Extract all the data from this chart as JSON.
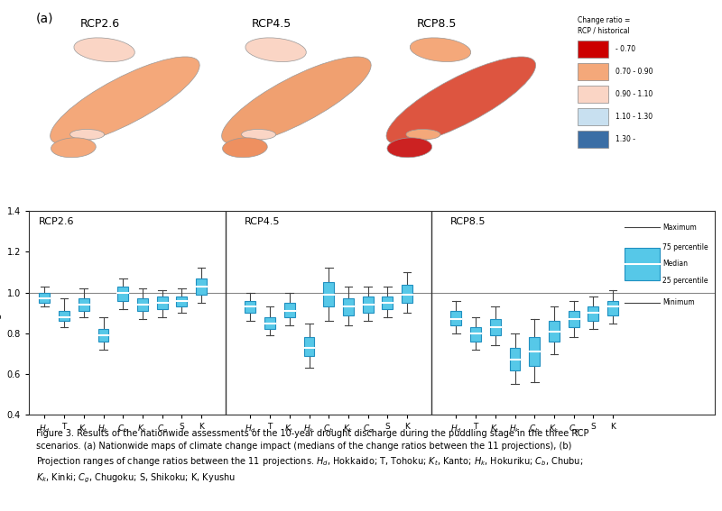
{
  "scenarios": [
    "RCP2.6",
    "RCP4.5",
    "RCP8.5"
  ],
  "region_labels": [
    "$H_d$",
    "T",
    "$K_t$",
    "$H_k$",
    "$C_b$",
    "$K_k$",
    "$C_g$",
    "S",
    "K"
  ],
  "ylim": [
    0.4,
    1.4
  ],
  "yticks": [
    0.4,
    0.6,
    0.8,
    1.0,
    1.2,
    1.4
  ],
  "ylabel": "Change ratio",
  "box_color": "#56C8E8",
  "box_edge_color": "#2090C0",
  "median_color": "#ffffff",
  "whisker_color": "#444444",
  "box_data": {
    "RCP2.6": [
      {
        "min": 0.93,
        "q1": 0.95,
        "median": 0.97,
        "q3": 1.0,
        "max": 1.03
      },
      {
        "min": 0.83,
        "q1": 0.86,
        "median": 0.88,
        "q3": 0.91,
        "max": 0.97
      },
      {
        "min": 0.88,
        "q1": 0.91,
        "median": 0.94,
        "q3": 0.97,
        "max": 1.02
      },
      {
        "min": 0.72,
        "q1": 0.76,
        "median": 0.79,
        "q3": 0.82,
        "max": 0.88
      },
      {
        "min": 0.92,
        "q1": 0.96,
        "median": 1.0,
        "q3": 1.03,
        "max": 1.07
      },
      {
        "min": 0.87,
        "q1": 0.91,
        "median": 0.94,
        "q3": 0.97,
        "max": 1.02
      },
      {
        "min": 0.88,
        "q1": 0.92,
        "median": 0.95,
        "q3": 0.98,
        "max": 1.01
      },
      {
        "min": 0.9,
        "q1": 0.93,
        "median": 0.96,
        "q3": 0.98,
        "max": 1.02
      },
      {
        "min": 0.95,
        "q1": 0.99,
        "median": 1.03,
        "q3": 1.07,
        "max": 1.12
      }
    ],
    "RCP4.5": [
      {
        "min": 0.86,
        "q1": 0.9,
        "median": 0.93,
        "q3": 0.96,
        "max": 1.0
      },
      {
        "min": 0.79,
        "q1": 0.82,
        "median": 0.85,
        "q3": 0.88,
        "max": 0.93
      },
      {
        "min": 0.84,
        "q1": 0.88,
        "median": 0.91,
        "q3": 0.95,
        "max": 1.0
      },
      {
        "min": 0.63,
        "q1": 0.69,
        "median": 0.73,
        "q3": 0.78,
        "max": 0.85
      },
      {
        "min": 0.86,
        "q1": 0.93,
        "median": 0.99,
        "q3": 1.05,
        "max": 1.12
      },
      {
        "min": 0.84,
        "q1": 0.89,
        "median": 0.93,
        "q3": 0.97,
        "max": 1.03
      },
      {
        "min": 0.86,
        "q1": 0.9,
        "median": 0.94,
        "q3": 0.98,
        "max": 1.03
      },
      {
        "min": 0.88,
        "q1": 0.92,
        "median": 0.95,
        "q3": 0.98,
        "max": 1.03
      },
      {
        "min": 0.9,
        "q1": 0.95,
        "median": 0.99,
        "q3": 1.04,
        "max": 1.1
      }
    ],
    "RCP8.5": [
      {
        "min": 0.8,
        "q1": 0.84,
        "median": 0.87,
        "q3": 0.91,
        "max": 0.96
      },
      {
        "min": 0.72,
        "q1": 0.76,
        "median": 0.8,
        "q3": 0.83,
        "max": 0.88
      },
      {
        "min": 0.74,
        "q1": 0.79,
        "median": 0.83,
        "q3": 0.87,
        "max": 0.93
      },
      {
        "min": 0.55,
        "q1": 0.62,
        "median": 0.67,
        "q3": 0.73,
        "max": 0.8
      },
      {
        "min": 0.56,
        "q1": 0.64,
        "median": 0.71,
        "q3": 0.78,
        "max": 0.87
      },
      {
        "min": 0.7,
        "q1": 0.76,
        "median": 0.81,
        "q3": 0.86,
        "max": 0.93
      },
      {
        "min": 0.78,
        "q1": 0.83,
        "median": 0.87,
        "q3": 0.91,
        "max": 0.96
      },
      {
        "min": 0.82,
        "q1": 0.86,
        "median": 0.9,
        "q3": 0.93,
        "max": 0.98
      },
      {
        "min": 0.85,
        "q1": 0.89,
        "median": 0.93,
        "q3": 0.96,
        "max": 1.01
      }
    ]
  },
  "map_legend": {
    "title": "Change ratio =\nRCP / historical",
    "items": [
      {
        "label": "- 0.70",
        "color": "#CC0000"
      },
      {
        "label": "0.70 - 0.90",
        "color": "#F4A87A"
      },
      {
        "label": "0.90 - 1.10",
        "color": "#FAD5C5"
      },
      {
        "label": "1.10 - 1.30",
        "color": "#C8E0F0"
      },
      {
        "label": "1.30 -",
        "color": "#3B6EA5"
      }
    ]
  },
  "background_color": "#ffffff"
}
